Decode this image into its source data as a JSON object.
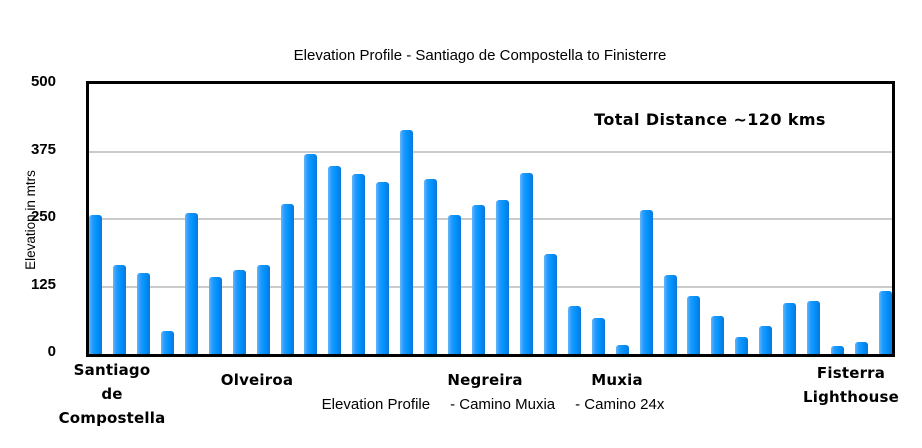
{
  "title": "Elevation Profile - Santiago de Compostella to Finisterre",
  "annotation": "Total Distance ~120 kms",
  "y_axis": {
    "label": "Elevation in mtrs",
    "ticks": [
      "500",
      "375",
      "250",
      "125",
      "0"
    ]
  },
  "x_axis": {
    "labels": [
      {
        "lines": [
          "Santiago",
          "de",
          "Compostella"
        ]
      },
      {
        "lines": [
          "Olveiroa"
        ]
      },
      {
        "lines": [
          "Negreira"
        ]
      },
      {
        "lines": [
          "Muxia"
        ]
      },
      {
        "lines": [
          "Fisterra",
          "Lighthouse"
        ]
      }
    ]
  },
  "caption": {
    "parts": [
      "Elevation Profile",
      "- Camino Muxia",
      "- Camino 24x"
    ]
  },
  "colors": {
    "bar": "#0090fa",
    "gridline": "#cbcbcb",
    "axis": "#000000"
  },
  "chart_data": {
    "type": "bar",
    "title": "Elevation Profile - Santiago de Compostella to Finisterre",
    "xlabel": "",
    "ylabel": "Elevation in mtrs",
    "ylim": [
      0,
      500
    ],
    "yticks": [
      0,
      125,
      250,
      375,
      500
    ],
    "grid": true,
    "legend_position": "none",
    "section_labels": [
      "Santiago de Compostella",
      "Olveiroa",
      "Negreira",
      "Muxia",
      "Fisterra Lighthouse"
    ],
    "annotation": "Total Distance ~120 kms",
    "caption": "Elevation Profile - Camino Muxia - Camino 24x",
    "values": [
      258,
      165,
      150,
      43,
      262,
      142,
      155,
      165,
      277,
      371,
      348,
      333,
      318,
      415,
      324,
      257,
      276,
      286,
      336,
      185,
      88,
      67,
      16,
      266,
      147,
      107,
      70,
      31,
      52,
      95,
      98,
      15,
      22,
      116
    ]
  }
}
